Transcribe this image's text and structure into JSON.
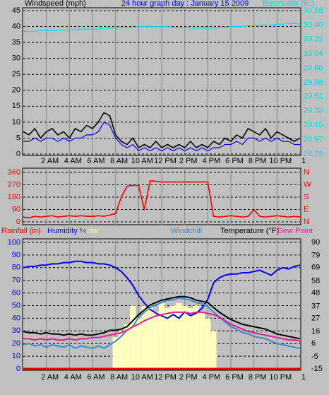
{
  "chart_data": [
    {
      "type": "line",
      "title": "24 hour graph day : January 15 2009",
      "title_color": "#0000ff",
      "ylabel": "Windspeed (mph)",
      "ylabel_color": "#000000",
      "y2label": "Barometer (in.)",
      "y2label_color": "#00e0e0",
      "x": [
        0,
        0.5,
        1,
        1.5,
        2,
        2.5,
        3,
        3.5,
        4,
        4.5,
        5,
        5.5,
        6,
        6.5,
        7,
        7.5,
        8,
        8.5,
        9,
        9.5,
        10,
        10.5,
        11,
        11.5,
        12,
        12.5,
        13,
        13.5,
        14,
        14.5,
        15,
        15.5,
        16,
        16.5,
        17,
        17.5,
        18,
        18.5,
        19,
        19.5,
        20,
        20.5,
        21,
        21.5,
        22,
        22.5,
        23,
        23.5,
        24
      ],
      "xlim": [
        0,
        24
      ],
      "xticks": [
        {
          "value": 2,
          "label": "2 AM"
        },
        {
          "value": 4,
          "label": "4 AM"
        },
        {
          "value": 6,
          "label": "6 AM"
        },
        {
          "value": 8,
          "label": "8 AM"
        },
        {
          "value": 10,
          "label": "10 AM"
        },
        {
          "value": 12,
          "label": "12 PM"
        },
        {
          "value": 14,
          "label": "2 PM"
        },
        {
          "value": 16,
          "label": "4 PM"
        },
        {
          "value": 18,
          "label": "6 PM"
        },
        {
          "value": 20,
          "label": "8 PM"
        },
        {
          "value": 22,
          "label": "10 PM"
        },
        {
          "value": 24,
          "label": "1"
        }
      ],
      "ylim": [
        0,
        45
      ],
      "yticks": [
        0,
        5,
        10,
        15,
        20,
        25,
        30,
        35,
        40,
        45
      ],
      "ytick_color": "#000000",
      "y2lim": [
        28.79,
        30.58
      ],
      "y2ticks": [
        28.79,
        28.97,
        29.15,
        29.33,
        29.51,
        29.68,
        29.86,
        30.04,
        30.22,
        {
          "value": 30.4,
          "label": "30.40"
        },
        30.58
      ],
      "y2tick_color": "#00e0e0",
      "grid": true,
      "series": [
        {
          "color": "#000000",
          "values": [
            7,
            6,
            8,
            5,
            7,
            8,
            6,
            7,
            5,
            8,
            7,
            9,
            8,
            10,
            13,
            12,
            6,
            4,
            3,
            5,
            2,
            3,
            2,
            4,
            2,
            3,
            2,
            3,
            2,
            4,
            2,
            3,
            2,
            4,
            3,
            5,
            4,
            6,
            5,
            8,
            7,
            6,
            8,
            5,
            7,
            6,
            5,
            4,
            5
          ]
        },
        {
          "color": "#0000ff",
          "values": [
            4,
            4,
            5,
            4,
            5,
            5,
            4,
            5,
            4,
            5,
            5,
            6,
            6,
            7,
            10,
            9,
            5,
            3,
            2,
            3,
            1,
            2,
            1,
            2,
            1,
            2,
            1,
            2,
            1,
            2,
            1,
            2,
            1,
            2,
            2,
            3,
            3,
            4,
            3,
            5,
            5,
            4,
            5,
            4,
            5,
            4,
            4,
            3,
            3
          ]
        },
        {
          "color": "#00e0e0",
          "axis": "y2",
          "values": [
            30.32,
            30.32,
            30.32,
            30.33,
            30.33,
            30.33,
            30.33,
            30.34,
            30.34,
            30.34,
            30.35,
            30.35,
            30.35,
            30.35,
            30.36,
            30.36,
            30.36,
            30.37,
            30.37,
            30.37,
            30.38,
            30.38,
            30.38,
            30.38,
            30.38,
            30.38,
            30.37,
            30.37,
            30.37,
            30.36,
            30.36,
            30.36,
            30.36,
            30.36,
            30.37,
            30.37,
            30.38,
            30.38,
            30.38,
            30.39,
            30.39,
            30.4,
            30.4,
            30.4,
            30.41,
            30.41,
            30.42,
            30.42,
            30.41
          ]
        }
      ]
    },
    {
      "type": "line",
      "x": [
        0,
        0.5,
        1,
        1.5,
        2,
        2.5,
        3,
        3.5,
        4,
        4.5,
        5,
        5.5,
        6,
        6.5,
        7,
        7.5,
        8,
        8.5,
        9,
        9.5,
        10,
        10.5,
        11,
        11.5,
        12,
        12.5,
        13,
        13.5,
        14,
        14.5,
        15,
        15.5,
        16,
        16.5,
        17,
        17.5,
        18,
        18.5,
        19,
        19.5,
        20,
        20.5,
        21,
        21.5,
        22,
        22.5,
        23,
        23.5,
        24
      ],
      "xlim": [
        0,
        24
      ],
      "xticks": [
        2,
        4,
        6,
        8,
        10,
        12,
        14,
        16,
        18,
        20,
        22
      ],
      "xtick_labels": false,
      "ylim": [
        0,
        360
      ],
      "yticks": [
        0,
        90,
        180,
        270,
        360
      ],
      "ytick_color": "#ff0000",
      "y2lim": [
        0,
        360
      ],
      "y2ticks": [
        {
          "value": 0,
          "label": "N"
        },
        {
          "value": 90,
          "label": "E"
        },
        {
          "value": 180,
          "label": "S"
        },
        {
          "value": 270,
          "label": "W"
        },
        {
          "value": 360,
          "label": "N"
        }
      ],
      "y2tick_color": "#ff0000",
      "grid": true,
      "series": [
        {
          "color": "#ff0000",
          "values": [
            35,
            30,
            40,
            35,
            40,
            45,
            35,
            40,
            45,
            40,
            45,
            40,
            40,
            45,
            40,
            50,
            60,
            180,
            260,
            265,
            265,
            90,
            300,
            295,
            290,
            290,
            290,
            290,
            290,
            290,
            290,
            290,
            290,
            40,
            35,
            40,
            45,
            40,
            35,
            40,
            90,
            40,
            35,
            40,
            45,
            40,
            35,
            40,
            35
          ]
        }
      ]
    },
    {
      "type": "line",
      "x": [
        0,
        0.5,
        1,
        1.5,
        2,
        2.5,
        3,
        3.5,
        4,
        4.5,
        5,
        5.5,
        6,
        6.5,
        7,
        7.5,
        8,
        8.5,
        9,
        9.5,
        10,
        10.5,
        11,
        11.5,
        12,
        12.5,
        13,
        13.5,
        14,
        14.5,
        15,
        15.5,
        16,
        16.5,
        17,
        17.5,
        18,
        18.5,
        19,
        19.5,
        20,
        20.5,
        21,
        21.5,
        22,
        22.5,
        23,
        23.5,
        24
      ],
      "xlim": [
        0,
        24
      ],
      "xticks": [
        {
          "value": 2,
          "label": "2 AM"
        },
        {
          "value": 4,
          "label": "4 AM"
        },
        {
          "value": 6,
          "label": "6 AM"
        },
        {
          "value": 8,
          "label": "8 AM"
        },
        {
          "value": 10,
          "label": "10 AM"
        },
        {
          "value": 12,
          "label": "12 PM"
        },
        {
          "value": 14,
          "label": "2 PM"
        },
        {
          "value": 16,
          "label": "4 PM"
        },
        {
          "value": 18,
          "label": "6 PM"
        },
        {
          "value": 20,
          "label": "8 PM"
        },
        {
          "value": 22,
          "label": "10 PM"
        },
        {
          "value": 24,
          "label": "1"
        }
      ],
      "ylim": [
        0,
        100
      ],
      "yticks": [
        0,
        10,
        20,
        30,
        40,
        50,
        60,
        70,
        80,
        90,
        100
      ],
      "ytick_color": "#0000ff",
      "y2lim": [
        -15,
        90
      ],
      "y2ticks": [
        -15,
        -5,
        6,
        16,
        27,
        37,
        48,
        58,
        69,
        79,
        90
      ],
      "y2tick_color": "#000000",
      "grid": true,
      "series": [
        {
          "name": "Rainfall (in)",
          "color": "#ff0000",
          "values": [
            0,
            0,
            0,
            0,
            0,
            0,
            0,
            0,
            0,
            0,
            0,
            0,
            0,
            0,
            0,
            0,
            0,
            0,
            0,
            0,
            0,
            0,
            0,
            0,
            0,
            0,
            0,
            0,
            0,
            0,
            0,
            0,
            0,
            0,
            0,
            0,
            0,
            0,
            0,
            0,
            0,
            0,
            0,
            0,
            0,
            0,
            0,
            0,
            0
          ]
        },
        {
          "name": "Humidity %",
          "color": "#0000ff",
          "values": [
            80,
            81,
            81,
            82,
            82,
            83,
            83,
            84,
            84,
            85,
            85,
            84,
            84,
            83,
            83,
            82,
            80,
            77,
            72,
            66,
            58,
            52,
            47,
            44,
            42,
            40,
            43,
            40,
            45,
            42,
            44,
            48,
            55,
            68,
            72,
            74,
            75,
            75,
            76,
            76,
            77,
            78,
            76,
            74,
            78,
            80,
            79,
            81,
            82
          ]
        },
        {
          "name": "Solar",
          "color": "#ffffc0",
          "style": "bar",
          "values": [
            0,
            0,
            0,
            0,
            0,
            0,
            0,
            0,
            0,
            0,
            0,
            0,
            0,
            0,
            0,
            0,
            25,
            30,
            35,
            50,
            40,
            50,
            50,
            45,
            52,
            48,
            50,
            52,
            50,
            48,
            50,
            45,
            40,
            30,
            0,
            0,
            0,
            0,
            0,
            0,
            0,
            0,
            0,
            0,
            0,
            0,
            0,
            0,
            0
          ]
        },
        {
          "name": "Windchill",
          "color": "#3a8ad0",
          "axis": "y2",
          "values": [
            5,
            6,
            4,
            5,
            3,
            5,
            4,
            3,
            5,
            2,
            4,
            3,
            2,
            4,
            2,
            5,
            8,
            12,
            17,
            20,
            28,
            32,
            36,
            38,
            40,
            42,
            42,
            44,
            43,
            42,
            40,
            39,
            37,
            32,
            28,
            24,
            20,
            18,
            15,
            14,
            12,
            11,
            10,
            8,
            6,
            5,
            4,
            3,
            2
          ]
        },
        {
          "name": "Temperature (°F)",
          "color": "#000000",
          "axis": "y2",
          "values": [
            16,
            15,
            15,
            14,
            15,
            14,
            14,
            13,
            14,
            13,
            14,
            13,
            13,
            14,
            15,
            17,
            17,
            18,
            20,
            25,
            30,
            34,
            38,
            40,
            42,
            43,
            44,
            45,
            45,
            44,
            42,
            41,
            40,
            36,
            32,
            29,
            26,
            24,
            22,
            21,
            20,
            19,
            18,
            16,
            14,
            13,
            12,
            11,
            10
          ]
        },
        {
          "name": "Dew Point",
          "color": "#e0209a",
          "axis": "y2",
          "values": [
            10,
            10,
            9,
            10,
            9,
            10,
            9,
            9,
            10,
            9,
            10,
            10,
            11,
            11,
            12,
            13,
            14,
            15,
            17,
            20,
            22,
            25,
            27,
            29,
            30,
            31,
            32,
            32,
            32,
            31,
            32,
            32,
            31,
            30,
            28,
            25,
            22,
            20,
            18,
            16,
            15,
            14,
            13,
            12,
            11,
            10,
            9,
            9,
            8
          ]
        }
      ]
    }
  ]
}
